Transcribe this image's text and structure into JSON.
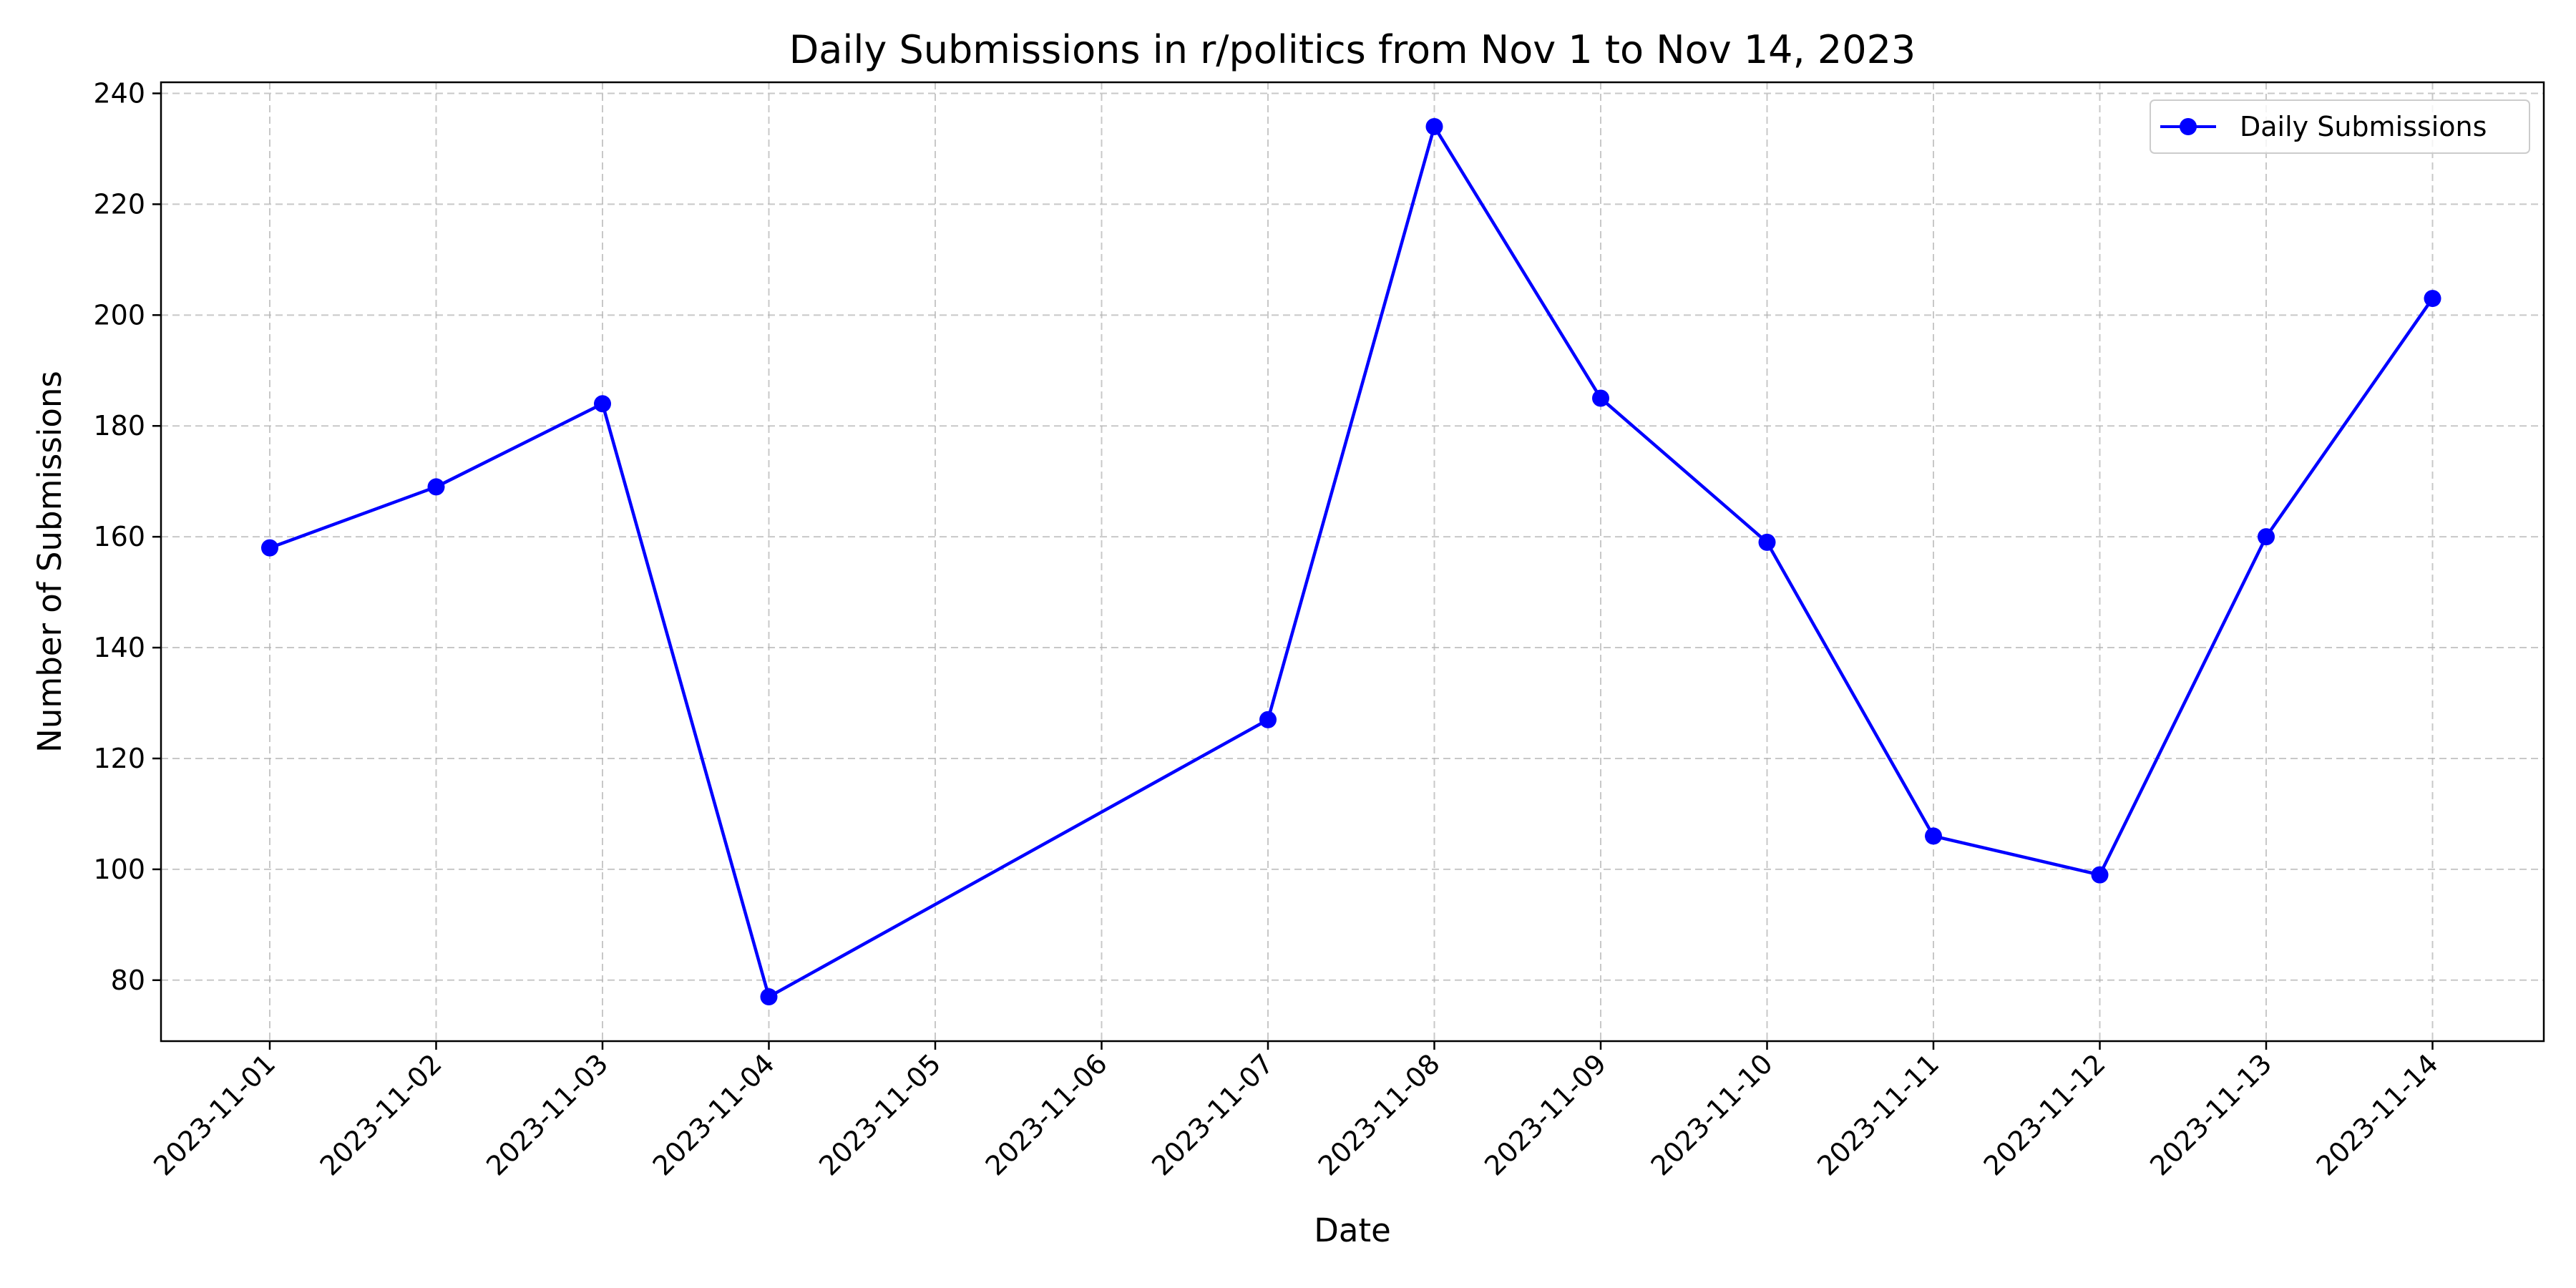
{
  "chart_data": {
    "type": "line",
    "title": "Daily Submissions in r/politics from Nov 1 to Nov 14, 2023",
    "xlabel": "Date",
    "ylabel": "Number of Submissions",
    "x": [
      "2023-11-01",
      "2023-11-02",
      "2023-11-03",
      "2023-11-04",
      "2023-11-05",
      "2023-11-06",
      "2023-11-07",
      "2023-11-08",
      "2023-11-09",
      "2023-11-10",
      "2023-11-11",
      "2023-11-12",
      "2023-11-13",
      "2023-11-14"
    ],
    "x_ticks": [
      "2023-11-01",
      "2023-11-02",
      "2023-11-03",
      "2023-11-04",
      "2023-11-05",
      "2023-11-06",
      "2023-11-07",
      "2023-11-08",
      "2023-11-09",
      "2023-11-10",
      "2023-11-11",
      "2023-11-12",
      "2023-11-13",
      "2023-11-14"
    ],
    "series": [
      {
        "name": "Daily Submissions",
        "color": "#0000ff",
        "marker": "circle",
        "points": [
          {
            "x": "2023-11-01",
            "y": 158
          },
          {
            "x": "2023-11-02",
            "y": 169
          },
          {
            "x": "2023-11-03",
            "y": 184
          },
          {
            "x": "2023-11-04",
            "y": 77
          },
          {
            "x": "2023-11-07",
            "y": 127
          },
          {
            "x": "2023-11-08",
            "y": 234
          },
          {
            "x": "2023-11-09",
            "y": 185
          },
          {
            "x": "2023-11-10",
            "y": 159
          },
          {
            "x": "2023-11-11",
            "y": 106
          },
          {
            "x": "2023-11-12",
            "y": 99
          },
          {
            "x": "2023-11-13",
            "y": 160
          },
          {
            "x": "2023-11-14",
            "y": 203
          }
        ]
      }
    ],
    "y_ticks": [
      80,
      100,
      120,
      140,
      160,
      180,
      200,
      220,
      240
    ],
    "ylim": [
      69,
      242
    ],
    "grid": true,
    "grid_style": "dashed",
    "legend_position": "top-right"
  }
}
